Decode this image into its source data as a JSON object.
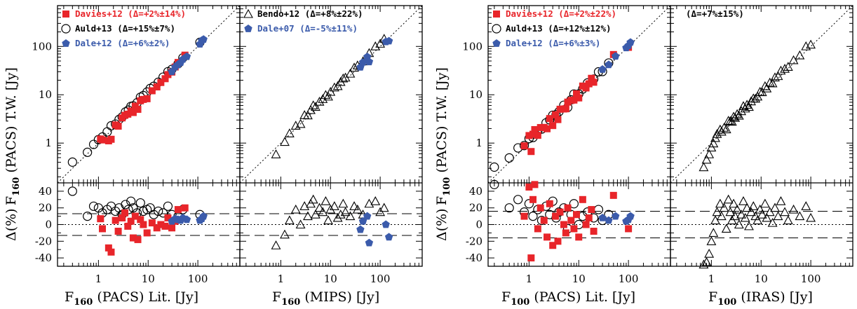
{
  "colors": {
    "davies": "#e8252a",
    "dale": "#3b5bab",
    "black": "#000000"
  },
  "ylabels": {
    "f160": "F",
    "f160_sub": "160",
    "f160_rest": "(PACS) T.W. [Jy]",
    "f100": "F",
    "f100_sub": "100",
    "f100_rest": "(PACS) T.W. [Jy]",
    "delta": "Δ(%)"
  },
  "xlabels": [
    {
      "main": "F",
      "sub": "160",
      "rest": "(PACS) Lit. [Jy]"
    },
    {
      "main": "F",
      "sub": "160",
      "rest": "(MIPS) [Jy]"
    },
    {
      "main": "F",
      "sub": "100",
      "rest": "(PACS) Lit. [Jy]"
    },
    {
      "main": "F",
      "sub": "100",
      "rest": "(IRAS) [Jy]"
    }
  ],
  "chart_data": [
    {
      "type": "scatter",
      "panel": "F160 PACS literature",
      "xscale": "log",
      "yscale": "log",
      "xlim": [
        0.15,
        700
      ],
      "ylim": [
        0.15,
        700
      ],
      "legend": [
        {
          "name": "Davies+12",
          "stat": "(Δ=+2%±14%)",
          "marker": "square",
          "color": "davies"
        },
        {
          "name": "Auld+13",
          "stat": "(Δ=+15%±7%)",
          "marker": "circle",
          "color": "black"
        },
        {
          "name": "Dale+12",
          "stat": "(Δ=+6%±2%)",
          "marker": "pentagon",
          "color": "dale"
        }
      ],
      "delta_dash": 13,
      "series": [
        {
          "name": "Auld+13",
          "marker": "circle",
          "x": [
            0.3,
            0.6,
            0.8,
            1.0,
            1.2,
            1.5,
            1.8,
            2.2,
            2.6,
            3.0,
            3.5,
            4.0,
            4.5,
            5.0,
            6.0,
            7.0,
            8.0,
            9.5,
            11,
            13,
            16,
            20,
            25,
            30,
            40,
            50,
            110
          ],
          "delta": [
            40,
            10,
            22,
            20,
            14,
            18,
            22,
            16,
            20,
            12,
            24,
            18,
            28,
            20,
            14,
            26,
            16,
            18,
            20,
            12,
            16,
            14,
            22,
            12,
            10,
            18,
            12
          ]
        },
        {
          "name": "Davies+12",
          "marker": "square",
          "x": [
            1.1,
            1.2,
            1.6,
            1.8,
            2.2,
            2.5,
            3.0,
            3.4,
            3.9,
            4.5,
            5.0,
            5.5,
            6.2,
            7.0,
            8.0,
            9.5,
            12,
            15,
            18,
            22,
            25,
            30,
            35,
            40,
            55
          ],
          "delta": [
            7,
            -5,
            -28,
            -33,
            5,
            -8,
            8,
            14,
            -2,
            4,
            -16,
            10,
            -18,
            6,
            0,
            -10,
            2,
            -4,
            0,
            -2,
            8,
            -4,
            4,
            18,
            20
          ]
        },
        {
          "name": "Dale+12",
          "marker": "pentagon",
          "x": [
            30,
            35,
            40,
            45,
            50,
            60,
            110,
            120,
            130
          ],
          "delta": [
            4,
            7,
            6,
            5,
            8,
            6,
            5,
            7,
            10
          ]
        }
      ]
    },
    {
      "type": "scatter",
      "panel": "F160 MIPS",
      "xscale": "log",
      "yscale": "log",
      "xlim": [
        0.15,
        700
      ],
      "ylim": [
        0.15,
        700
      ],
      "legend": [
        {
          "name": "Bendo+12",
          "stat": "(Δ=+8%±22%)",
          "marker": "triangle",
          "color": "black"
        },
        {
          "name": "Dale+07",
          "stat": "(Δ=-5%±11%)",
          "marker": "pentagon",
          "color": "dale"
        }
      ],
      "delta_dash": 13,
      "series": [
        {
          "name": "Bendo+12",
          "marker": "triangle",
          "x": [
            0.8,
            1.2,
            1.5,
            2.0,
            2.5,
            3.0,
            3.5,
            4.0,
            4.5,
            5.0,
            6.0,
            7.0,
            8.0,
            9.0,
            10,
            12,
            14,
            16,
            18,
            20,
            25,
            30,
            35,
            45,
            60,
            80,
            100,
            120
          ],
          "delta": [
            -25,
            -12,
            5,
            18,
            0,
            22,
            10,
            25,
            30,
            12,
            20,
            15,
            28,
            5,
            18,
            22,
            8,
            12,
            25,
            15,
            10,
            22,
            18,
            12,
            25,
            28,
            15,
            20
          ]
        },
        {
          "name": "Dale+07",
          "marker": "pentagon",
          "x": [
            40,
            45,
            55,
            60,
            130,
            150
          ],
          "delta": [
            -6,
            4,
            10,
            -22,
            0,
            -15
          ]
        }
      ]
    },
    {
      "type": "scatter",
      "panel": "F100 PACS literature",
      "xscale": "log",
      "yscale": "log",
      "xlim": [
        0.15,
        700
      ],
      "ylim": [
        0.15,
        700
      ],
      "legend": [
        {
          "name": "Davies+12",
          "stat": "(Δ=+2%±22%)",
          "marker": "square",
          "color": "davies"
        },
        {
          "name": "Auld+13",
          "stat": "(Δ=+12%±12%)",
          "marker": "circle",
          "color": "black"
        },
        {
          "name": "Dale+12",
          "stat": "(Δ=+6%±3%)",
          "marker": "pentagon",
          "color": "dale"
        }
      ],
      "delta_dash": 16,
      "series": [
        {
          "name": "Auld+13",
          "marker": "circle",
          "x": [
            0.2,
            0.4,
            0.6,
            0.8,
            1.0,
            1.2,
            1.5,
            1.8,
            2.2,
            2.6,
            3.0,
            3.5,
            4.0,
            5.0,
            6.0,
            7.0,
            8.0,
            10,
            12,
            15,
            20,
            25,
            30,
            40
          ],
          "delta": [
            55,
            20,
            30,
            15,
            25,
            10,
            18,
            5,
            22,
            12,
            28,
            8,
            15,
            20,
            -5,
            12,
            25,
            0,
            10,
            15,
            8,
            18,
            5,
            12
          ]
        },
        {
          "name": "Davies+12",
          "marker": "square",
          "x": [
            0.8,
            1.0,
            1.1,
            1.2,
            1.3,
            1.5,
            1.7,
            2.0,
            2.3,
            2.6,
            3.0,
            3.4,
            3.8,
            4.2,
            5.0,
            5.5,
            6.0,
            7.0,
            8.0,
            9.0,
            10,
            12,
            14,
            16,
            18,
            20,
            50,
            100
          ],
          "delta": [
            10,
            45,
            -40,
            30,
            48,
            -5,
            20,
            5,
            -15,
            25,
            -25,
            10,
            -20,
            15,
            0,
            -10,
            20,
            5,
            -5,
            12,
            -15,
            30,
            0,
            8,
            18,
            -8,
            35,
            -5
          ]
        },
        {
          "name": "Dale+12",
          "marker": "pentagon",
          "x": [
            30,
            40,
            55,
            90,
            100,
            110
          ],
          "delta": [
            8,
            5,
            10,
            4,
            6,
            10
          ]
        }
      ]
    },
    {
      "type": "scatter",
      "panel": "F100 IRAS",
      "xscale": "log",
      "yscale": "log",
      "xlim": [
        0.15,
        700
      ],
      "ylim": [
        0.15,
        700
      ],
      "legend": [
        {
          "name": "",
          "stat": "(Δ=+7%±15%)",
          "marker": "none",
          "color": "black"
        }
      ],
      "delta_dash": 16,
      "series": [
        {
          "name": "IRAS",
          "marker": "triangle",
          "x": [
            0.7,
            0.8,
            0.9,
            1.0,
            1.1,
            1.2,
            1.3,
            1.5,
            1.6,
            1.8,
            2.0,
            2.2,
            2.4,
            2.6,
            2.8,
            3.0,
            3.3,
            3.6,
            4.0,
            4.4,
            4.8,
            5.2,
            5.7,
            6.3,
            7.0,
            7.7,
            8.5,
            9.5,
            10.5,
            12,
            13,
            15,
            17,
            19,
            22,
            25,
            30,
            35,
            45,
            60,
            80,
            100
          ],
          "delta": [
            -55,
            -45,
            -35,
            -20,
            -10,
            5,
            15,
            25,
            10,
            20,
            -5,
            30,
            15,
            5,
            25,
            10,
            18,
            0,
            12,
            28,
            8,
            20,
            -2,
            15,
            22,
            10,
            5,
            18,
            12,
            25,
            8,
            15,
            2,
            20,
            10,
            28,
            15,
            5,
            18,
            10,
            22,
            8
          ]
        }
      ]
    }
  ]
}
